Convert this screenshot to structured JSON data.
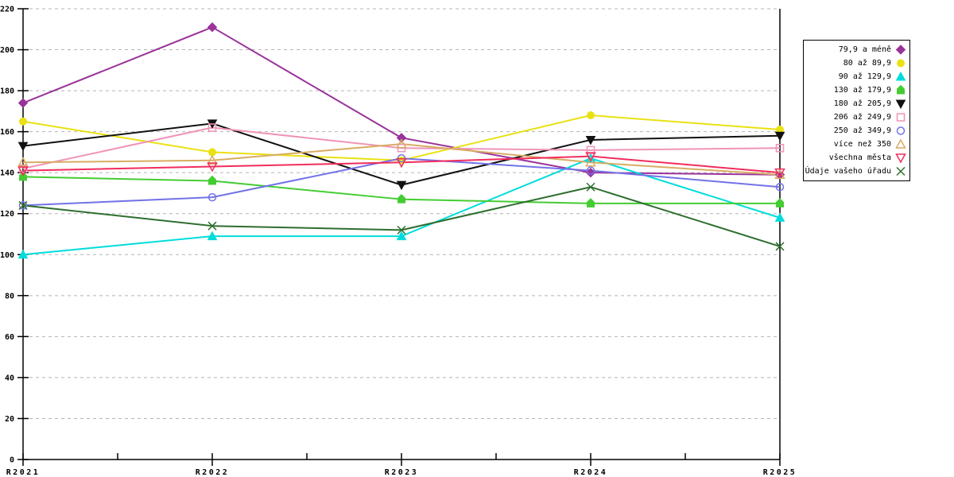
{
  "page": {
    "background": "#FFFFFF"
  },
  "chart_data": {
    "type": "line",
    "title": "",
    "xlabel": "",
    "ylabel": "",
    "x_tick_labels": [
      "R2021",
      "R2022",
      "R2023",
      "R2024",
      "R2025"
    ],
    "y_tick_labels": [
      "0",
      "20",
      "40",
      "60",
      "80",
      "100",
      "120",
      "140",
      "160",
      "180",
      "200",
      "220"
    ],
    "ylim": [
      0,
      220
    ],
    "y_tick_step": 20,
    "grid": "horizontal-dashed",
    "grid_color": "#B4B4B4",
    "axis_color": "#000000",
    "legend_position": "right",
    "series": [
      {
        "name": "79,9 a méně",
        "color": "#9A339A",
        "marker": "diamond",
        "filled": true,
        "values": [
          174,
          211,
          157,
          140,
          139
        ]
      },
      {
        "name": "80 až 89,9",
        "color": "#E9E112",
        "marker": "circle",
        "filled": true,
        "values": [
          165,
          150,
          146,
          168,
          161
        ]
      },
      {
        "name": "90 až 129,9",
        "color": "#00DCDC",
        "marker": "triangle-up",
        "filled": true,
        "values": [
          100,
          109,
          109,
          147,
          118
        ]
      },
      {
        "name": "130 až 179,9",
        "color": "#44CC33",
        "marker": "house",
        "filled": true,
        "values": [
          138,
          136,
          127,
          125,
          125
        ]
      },
      {
        "name": "180 až 205,9",
        "color": "#111111",
        "marker": "triangle-down",
        "filled": true,
        "values": [
          153,
          164,
          134,
          156,
          158
        ]
      },
      {
        "name": "206 až 249,9",
        "color": "#F094B8",
        "marker": "square",
        "filled": false,
        "values": [
          142,
          162,
          152,
          151,
          152
        ]
      },
      {
        "name": "250 až 349,9",
        "color": "#7272E8",
        "marker": "circle",
        "filled": false,
        "values": [
          124,
          128,
          147,
          141,
          133
        ]
      },
      {
        "name": "více než 350",
        "color": "#D8AC62",
        "marker": "triangle-up",
        "filled": false,
        "values": [
          145,
          146,
          154,
          145,
          139
        ]
      },
      {
        "name": "všechna města",
        "color": "#F22C5C",
        "marker": "triangle-down",
        "filled": false,
        "values": [
          141,
          143,
          145,
          148,
          140
        ]
      },
      {
        "name": "Údaje vašeho úřadu",
        "color": "#2E6E2E",
        "marker": "x-cross",
        "filled": false,
        "values": [
          124,
          114,
          112,
          133,
          104
        ]
      }
    ]
  }
}
